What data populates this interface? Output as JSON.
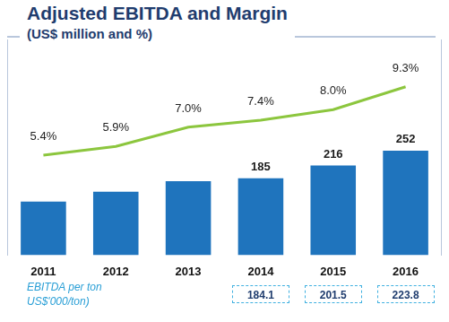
{
  "chart_data": {
    "type": "bar",
    "title": "Adjusted EBITDA and Margin",
    "subtitle": "(US$ million and %)",
    "categories": [
      "2011",
      "2012",
      "2013",
      "2014",
      "2015",
      "2016"
    ],
    "series": [
      {
        "type": "bar",
        "color": "#1f74bd",
        "values": [
          129,
          153,
          178,
          185,
          216,
          252
        ],
        "value_labels": [
          null,
          null,
          null,
          "185",
          "216",
          "252"
        ]
      },
      {
        "type": "line",
        "color": "#8cc63e",
        "axis": "y2",
        "marker": "none",
        "values": [
          5.4,
          5.9,
          7.0,
          7.4,
          8.0,
          9.3
        ],
        "value_labels": [
          "5.4%",
          "5.9%",
          "7.0%",
          "7.4%",
          "8.0%",
          "9.3%"
        ]
      }
    ],
    "ylim": [
      0,
      520
    ],
    "y2lim": [
      -0.3,
      12
    ],
    "grid": false,
    "tick_labels": "x",
    "ebitda_per_ton": {
      "label": [
        "EBITDA per ton",
        "US$'000/ton)"
      ],
      "values": [
        null,
        null,
        null,
        184.1,
        201.5,
        223.8
      ]
    }
  }
}
